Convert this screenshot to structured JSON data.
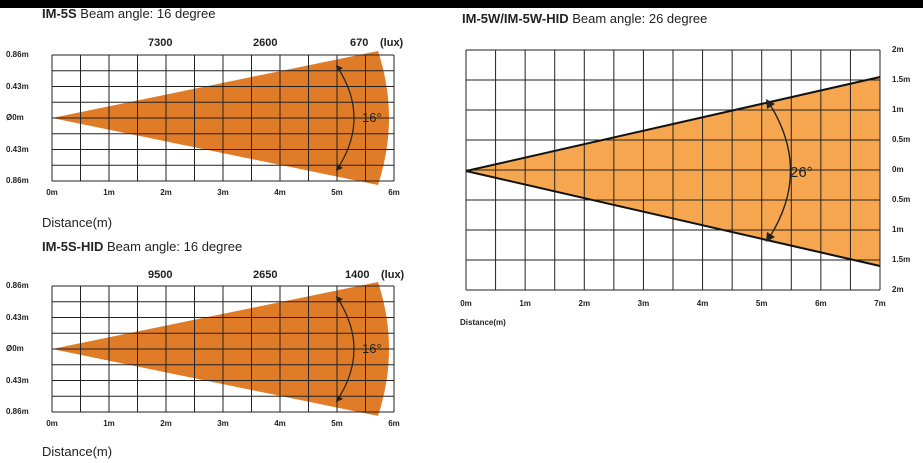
{
  "diagrams": [
    {
      "id": "im5s",
      "model": "IM-5S",
      "title_rest": "Beam angle: 16 degree",
      "lux_values": [
        "7300",
        "2600",
        "670"
      ],
      "lux_unit": "(lux)",
      "x_ticks": [
        "0m",
        "1m",
        "2m",
        "3m",
        "4m",
        "5m",
        "6m"
      ],
      "y_ticks": [
        "0.86m",
        "0.43m",
        "Ø0m",
        "0.43m",
        "0.86m"
      ],
      "angle_label": "16°",
      "xlabel": "Distance(m)",
      "beam_color": "#e07b28"
    },
    {
      "id": "im5shid",
      "model": "IM-5S-HID",
      "title_rest": "Beam angle: 16 degree",
      "lux_values": [
        "9500",
        "2650",
        "1400"
      ],
      "lux_unit": "(lux)",
      "x_ticks": [
        "0m",
        "1m",
        "2m",
        "3m",
        "4m",
        "5m",
        "6m"
      ],
      "y_ticks": [
        "0.86m",
        "0.43m",
        "Ø0m",
        "0.43m",
        "0.86m"
      ],
      "angle_label": "16°",
      "xlabel": "Distance(m)",
      "beam_color": "#e07b28"
    },
    {
      "id": "im5w",
      "model": "IM-5W/IM-5W-HID",
      "title_rest": "Beam angle: 26 degree",
      "x_ticks": [
        "0m",
        "1m",
        "2m",
        "3m",
        "4m",
        "5m",
        "6m",
        "7m"
      ],
      "y_ticks": [
        "2m",
        "1.5m",
        "1m",
        "0.5m",
        "0m",
        "0.5m",
        "1m",
        "1.5m",
        "2m"
      ],
      "angle_label": "26°",
      "xlabel": "Distance(m)",
      "beam_color": "#f5a64f"
    }
  ]
}
